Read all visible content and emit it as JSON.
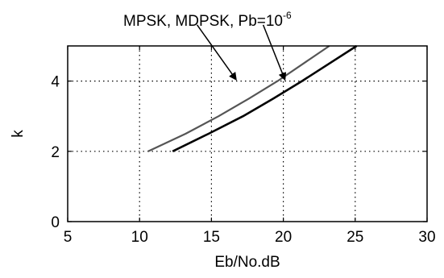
{
  "chart_data": {
    "type": "line",
    "title": "MPSK, MDPSK, Pb=10",
    "title_superscript": "-6",
    "xlabel": "Eb/No.dB",
    "ylabel": "k",
    "xlim": [
      5,
      30
    ],
    "ylim": [
      0,
      5
    ],
    "x_ticks": [
      "5",
      "10",
      "15",
      "20",
      "25",
      "30"
    ],
    "y_ticks": [
      "0",
      "2",
      "4"
    ],
    "grid": "dotted",
    "series": [
      {
        "color": "#555555",
        "points": [
          [
            10.6,
            2
          ],
          [
            13.2,
            2.5
          ],
          [
            15.5,
            3
          ],
          [
            17.6,
            3.5
          ],
          [
            19.6,
            4
          ],
          [
            21.4,
            4.5
          ],
          [
            23.2,
            5
          ]
        ]
      },
      {
        "color": "#000000",
        "points": [
          [
            12.3,
            2
          ],
          [
            14.8,
            2.5
          ],
          [
            17.2,
            3
          ],
          [
            19.3,
            3.5
          ],
          [
            21.3,
            4
          ],
          [
            23.2,
            4.5
          ],
          [
            25.1,
            5
          ]
        ]
      }
    ],
    "annotations": [
      {
        "from": [
          14.0,
          5.6
        ],
        "to": [
          16.7,
          4.05
        ]
      },
      {
        "from": [
          18.6,
          5.6
        ],
        "to": [
          20.1,
          4.05
        ]
      }
    ]
  }
}
